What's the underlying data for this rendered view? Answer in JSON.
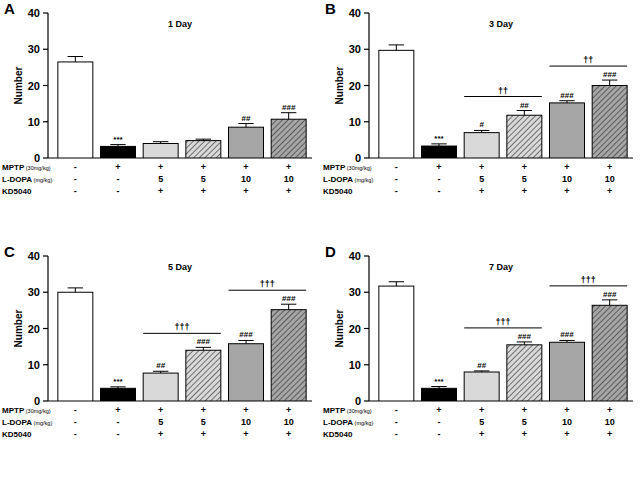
{
  "chart_data": [
    {
      "type": "bar",
      "panel_label": "A",
      "title": "1 Day",
      "y_label": "Number",
      "categories": [
        null,
        null,
        null,
        null,
        null,
        null
      ],
      "values": [
        26.5,
        3.2,
        4.0,
        4.8,
        8.5,
        10.7
      ],
      "errors": [
        1.5,
        0.5,
        0.5,
        0.4,
        1.0,
        1.8
      ],
      "colors": [
        "#ffffff",
        "#000000",
        "#d9d9d9",
        "#d9d9d9",
        "#a6a6a6",
        "#a6a6a6"
      ],
      "significance": [
        null,
        "***",
        null,
        null,
        "##",
        "###"
      ],
      "brackets": [],
      "treatments": [
        {
          "label": "MPTP",
          "unit": "(30mg/kg)",
          "values": [
            "-",
            "+",
            "+",
            "+",
            "+",
            "+"
          ]
        },
        {
          "label": "L-DOPA",
          "unit": "(mg/kg)",
          "values": [
            "-",
            "-",
            "5",
            "5",
            "10",
            "10"
          ]
        },
        {
          "label": "KD5040",
          "unit": null,
          "values": [
            "-",
            "-",
            "+",
            "+",
            "+",
            "+"
          ]
        }
      ],
      "ylim": [
        0,
        40
      ],
      "yticks": [
        0,
        10,
        20,
        30,
        40
      ],
      "grid": false
    },
    {
      "type": "bar",
      "panel_label": "B",
      "title": "3 Day",
      "y_label": "Number",
      "categories": [
        null,
        null,
        null,
        null,
        null,
        null
      ],
      "values": [
        29.7,
        3.3,
        7.0,
        11.8,
        15.2,
        20.0
      ],
      "errors": [
        1.5,
        0.6,
        0.6,
        1.3,
        0.6,
        1.5
      ],
      "colors": [
        "#ffffff",
        "#000000",
        "#d9d9d9",
        "#d9d9d9",
        "#a6a6a6",
        "#a6a6a6"
      ],
      "significance": [
        null,
        "***",
        "#",
        "##",
        "###",
        "###"
      ],
      "brackets": [
        {
          "categories": [
            2,
            3
          ],
          "label": "††"
        },
        {
          "categories": [
            4,
            5
          ],
          "label": "††"
        }
      ],
      "treatments": [
        {
          "label": "MPTP",
          "unit": "(30mg/kg)",
          "values": [
            "-",
            "+",
            "+",
            "+",
            "+",
            "+"
          ]
        },
        {
          "label": "L-DOPA",
          "unit": "(mg/kg)",
          "values": [
            "-",
            "-",
            "5",
            "5",
            "10",
            "10"
          ]
        },
        {
          "label": "KD5040",
          "unit": null,
          "values": [
            "-",
            "-",
            "+",
            "+",
            "+",
            "+"
          ]
        }
      ],
      "ylim": [
        0,
        40
      ],
      "yticks": [
        0,
        10,
        20,
        30,
        40
      ],
      "grid": false
    },
    {
      "type": "bar",
      "panel_label": "C",
      "title": "5 Day",
      "y_label": "Number",
      "categories": [
        null,
        null,
        null,
        null,
        null,
        null
      ],
      "values": [
        30.0,
        3.5,
        7.7,
        14.0,
        15.8,
        25.2
      ],
      "errors": [
        1.2,
        0.4,
        0.5,
        0.8,
        0.9,
        1.5
      ],
      "colors": [
        "#ffffff",
        "#000000",
        "#d9d9d9",
        "#d9d9d9",
        "#a6a6a6",
        "#a6a6a6"
      ],
      "significance": [
        null,
        "***",
        "##",
        "###",
        "###",
        "###"
      ],
      "brackets": [
        {
          "categories": [
            2,
            3
          ],
          "label": "†††"
        },
        {
          "categories": [
            4,
            5
          ],
          "label": "†††"
        }
      ],
      "treatments": [
        {
          "label": "MPTP",
          "unit": "(30mg/kg)",
          "values": [
            "-",
            "+",
            "+",
            "+",
            "+",
            "+"
          ]
        },
        {
          "label": "L-DOPA",
          "unit": "(mg/kg)",
          "values": [
            "-",
            "-",
            "5",
            "5",
            "10",
            "10"
          ]
        },
        {
          "label": "KD5040",
          "unit": null,
          "values": [
            "-",
            "-",
            "+",
            "+",
            "+",
            "+"
          ]
        }
      ],
      "ylim": [
        0,
        40
      ],
      "yticks": [
        0,
        10,
        20,
        30,
        40
      ],
      "grid": false
    },
    {
      "type": "bar",
      "panel_label": "D",
      "title": "7 Day",
      "y_label": "Number",
      "categories": [
        null,
        null,
        null,
        null,
        null,
        null
      ],
      "values": [
        31.7,
        3.5,
        8.0,
        15.5,
        16.2,
        26.4
      ],
      "errors": [
        1.2,
        0.5,
        0.3,
        0.8,
        0.5,
        1.5
      ],
      "colors": [
        "#ffffff",
        "#000000",
        "#d9d9d9",
        "#d9d9d9",
        "#a6a6a6",
        "#a6a6a6"
      ],
      "significance": [
        null,
        "***",
        "##",
        "###",
        "###",
        "###"
      ],
      "brackets": [
        {
          "categories": [
            2,
            3
          ],
          "label": "†††"
        },
        {
          "categories": [
            4,
            5
          ],
          "label": "†††"
        }
      ],
      "treatments": [
        {
          "label": "MPTP",
          "unit": "(30mg/kg)",
          "values": [
            "-",
            "+",
            "+",
            "+",
            "+",
            "+"
          ]
        },
        {
          "label": "L-DOPA",
          "unit": "(mg/kg)",
          "values": [
            "-",
            "-",
            "5",
            "5",
            "10",
            "10"
          ]
        },
        {
          "label": "KD5040",
          "unit": null,
          "values": [
            "-",
            "-",
            "+",
            "+",
            "+",
            "+"
          ]
        }
      ],
      "ylim": [
        0,
        40
      ],
      "yticks": [
        0,
        10,
        20,
        30,
        40
      ],
      "grid": false
    }
  ]
}
